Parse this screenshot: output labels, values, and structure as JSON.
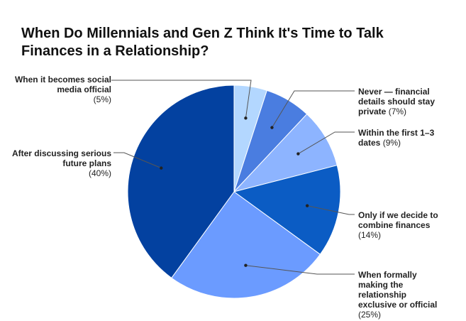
{
  "chart_data": {
    "type": "pie",
    "title": "When Do Millennials and Gen Z Think It's Time to Talk Finances in a Relationship?",
    "slices": [
      {
        "label": "When it becomes social media official",
        "value": 5,
        "pct_label": "(5%)",
        "color": "#b3d7ff"
      },
      {
        "label": "Never — financial details should stay private",
        "value": 7,
        "pct_label": "(7%)",
        "color": "#4a7de0"
      },
      {
        "label": "Within the first 1–3 dates",
        "value": 9,
        "pct_label": "(9%)",
        "color": "#8db4ff"
      },
      {
        "label": "Only if we decide to combine finances",
        "value": 14,
        "pct_label": "(14%)",
        "color": "#0b5cc4"
      },
      {
        "label": "When formally making the relationship exclusive or official",
        "value": 25,
        "pct_label": "(25%)",
        "color": "#6b9bff"
      },
      {
        "label": "After discussing serious future plans",
        "value": 40,
        "pct_label": "(40%)",
        "color": "#0341a0"
      }
    ],
    "start": "top",
    "direction": "clockwise",
    "legend": "none"
  }
}
